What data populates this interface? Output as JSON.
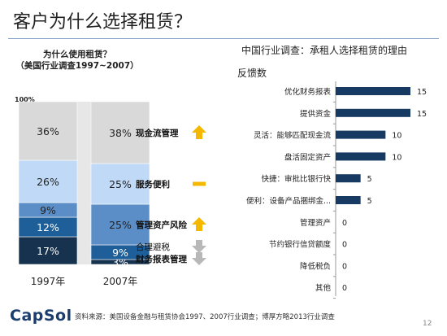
{
  "slide": {
    "title": "客户为什么选择租赁？",
    "logo": "CapSol",
    "source": "资料来源：美国设备金融与租赁协会1997、2007行业调查；博厚方略2013行业调查",
    "page_number": "12"
  },
  "colors": {
    "title_rule": "#7f9fc7",
    "arrow_up": "#f5b800",
    "arrow_down": "#b8b8b8",
    "dash": "#f5b800",
    "hbar": "#173a63",
    "connector": "#d3d3d3"
  },
  "chart_data": [
    {
      "type": "bar",
      "stacked": true,
      "title": "为什么使用租赁？",
      "subtitle": "（美国行业调查1997~2007）",
      "y_top_label": "100%",
      "categories": [
        "1997年",
        "2007年"
      ],
      "series": [
        {
          "name": "财务报表管理",
          "values": [
            17,
            3
          ],
          "labels": [
            "17%",
            "3%"
          ],
          "color": "#17324f",
          "text_color": "#ffffff",
          "icon": "arrow-down"
        },
        {
          "name": "合理避税",
          "values": [
            12,
            9
          ],
          "labels": [
            "12%",
            "9%"
          ],
          "color": "#1f5f99",
          "text_color": "#ffffff",
          "icon": "arrow-down"
        },
        {
          "name": "管理资产风险",
          "values": [
            9,
            25
          ],
          "labels": [
            "9%",
            "25%"
          ],
          "color": "#5b8ec7",
          "text_color": "#222222",
          "icon": "arrow-up"
        },
        {
          "name": "服务便利",
          "values": [
            26,
            25
          ],
          "labels": [
            "26%",
            "25%"
          ],
          "color": "#bfd9f6",
          "text_color": "#222222",
          "icon": "dash"
        },
        {
          "name": "现金流管理",
          "values": [
            36,
            38
          ],
          "labels": [
            "36%",
            "38%"
          ],
          "color": "#d9d9d9",
          "text_color": "#222222",
          "icon": "arrow-up"
        }
      ],
      "ylim": [
        0,
        100
      ]
    },
    {
      "type": "bar",
      "orientation": "horizontal",
      "title": "中国行业调查：承租人选择租赁的理由",
      "xlabel": "反馈数",
      "categories": [
        "优化财务报表",
        "提供资金",
        "灵活：能够匹配现金流",
        "盘活固定资产",
        "快捷：审批比银行快",
        "便利：设备产品捆绑金...",
        "管理资产",
        "节约银行信贷额度",
        "降低税负",
        "其他"
      ],
      "values": [
        15,
        15,
        10,
        10,
        5,
        5,
        0,
        0,
        0,
        0
      ],
      "xlim": [
        0,
        15
      ]
    }
  ]
}
